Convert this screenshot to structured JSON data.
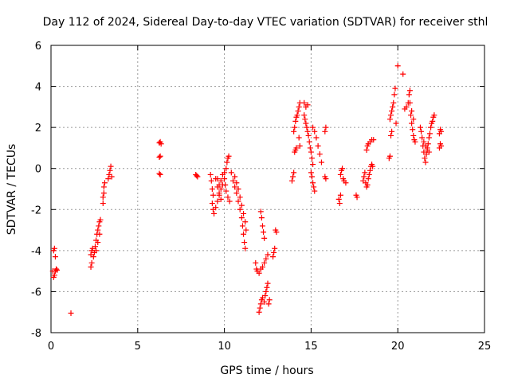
{
  "chart_data": {
    "type": "scatter",
    "title": "Day 112 of 2024, Sidereal Day-to-day VTEC variation (SDTVAR) for receiver sthl",
    "xlabel": "GPS time / hours",
    "ylabel": "SDTVAR / TECUs",
    "xlim": [
      0,
      25
    ],
    "ylim": [
      -8,
      6
    ],
    "xticks": [
      0,
      5,
      10,
      15,
      20,
      25
    ],
    "yticks": [
      -8,
      -6,
      -4,
      -2,
      0,
      2,
      4,
      6
    ],
    "xtick_labels": [
      "0",
      "5",
      "10",
      "15",
      "20",
      "25"
    ],
    "ytick_labels": [
      "-8",
      "-6",
      "-4",
      "-2",
      "0",
      "2",
      "4",
      "6"
    ],
    "grid": true,
    "marker": "+",
    "color": "#ff0000",
    "series": [
      {
        "name": "SDTVAR",
        "points": [
          [
            0.15,
            -4.0
          ],
          [
            0.2,
            -3.9
          ],
          [
            0.25,
            -4.3
          ],
          [
            0.1,
            -5.0
          ],
          [
            0.15,
            -5.3
          ],
          [
            0.2,
            -5.2
          ],
          [
            0.25,
            -5.0
          ],
          [
            0.3,
            -4.9
          ],
          [
            0.35,
            -4.95
          ],
          [
            1.15,
            -7.05
          ],
          [
            2.3,
            -4.8
          ],
          [
            2.35,
            -4.6
          ],
          [
            2.3,
            -4.2
          ],
          [
            2.35,
            -4.0
          ],
          [
            2.4,
            -3.9
          ],
          [
            2.45,
            -4.3
          ],
          [
            2.5,
            -4.1
          ],
          [
            2.55,
            -3.8
          ],
          [
            2.6,
            -3.5
          ],
          [
            2.65,
            -3.2
          ],
          [
            2.7,
            -3.0
          ],
          [
            2.75,
            -2.8
          ],
          [
            2.8,
            -2.6
          ],
          [
            2.85,
            -2.5
          ],
          [
            2.6,
            -4.0
          ],
          [
            2.7,
            -3.6
          ],
          [
            2.8,
            -3.2
          ],
          [
            3.0,
            -1.7
          ],
          [
            3.0,
            -1.4
          ],
          [
            3.05,
            -1.2
          ],
          [
            3.05,
            -0.9
          ],
          [
            3.1,
            -0.7
          ],
          [
            3.3,
            -0.5
          ],
          [
            3.35,
            -0.3
          ],
          [
            3.4,
            -0.1
          ],
          [
            3.45,
            0.1
          ],
          [
            3.5,
            -0.4
          ],
          [
            6.25,
            1.25
          ],
          [
            6.3,
            1.3
          ],
          [
            6.35,
            1.2
          ],
          [
            6.25,
            0.55
          ],
          [
            6.3,
            0.6
          ],
          [
            6.25,
            -0.25
          ],
          [
            6.3,
            -0.3
          ],
          [
            8.35,
            -0.3
          ],
          [
            8.4,
            -0.35
          ],
          [
            8.45,
            -0.4
          ],
          [
            9.2,
            -0.3
          ],
          [
            9.25,
            -0.6
          ],
          [
            9.3,
            -1.0
          ],
          [
            9.35,
            -1.3
          ],
          [
            9.3,
            -1.7
          ],
          [
            9.35,
            -2.0
          ],
          [
            9.4,
            -2.2
          ],
          [
            9.5,
            -1.9
          ],
          [
            9.6,
            -1.6
          ],
          [
            9.7,
            -1.3
          ],
          [
            9.8,
            -1.0
          ],
          [
            9.9,
            -0.8
          ],
          [
            9.6,
            -0.5
          ],
          [
            9.7,
            -0.8
          ],
          [
            9.8,
            -0.6
          ],
          [
            9.9,
            -0.3
          ],
          [
            10.0,
            -0.5
          ],
          [
            10.0,
            -0.2
          ],
          [
            10.1,
            0.0
          ],
          [
            10.15,
            0.3
          ],
          [
            10.2,
            0.5
          ],
          [
            10.25,
            0.6
          ],
          [
            9.5,
            -0.5
          ],
          [
            9.6,
            -0.9
          ],
          [
            9.7,
            -1.2
          ],
          [
            9.8,
            -1.5
          ],
          [
            10.05,
            -0.8
          ],
          [
            10.1,
            -1.1
          ],
          [
            10.2,
            -1.4
          ],
          [
            10.3,
            -1.6
          ],
          [
            10.4,
            -0.2
          ],
          [
            10.5,
            -0.6
          ],
          [
            10.6,
            -0.9
          ],
          [
            10.7,
            -1.2
          ],
          [
            10.8,
            -1.6
          ],
          [
            10.9,
            -2.0
          ],
          [
            11.0,
            -2.4
          ],
          [
            11.05,
            -2.8
          ],
          [
            11.1,
            -3.2
          ],
          [
            11.15,
            -3.6
          ],
          [
            11.2,
            -3.9
          ],
          [
            10.6,
            -0.4
          ],
          [
            10.7,
            -0.7
          ],
          [
            10.8,
            -1.0
          ],
          [
            10.9,
            -1.4
          ],
          [
            11.0,
            -1.8
          ],
          [
            11.1,
            -2.2
          ],
          [
            11.2,
            -2.6
          ],
          [
            11.25,
            -3.0
          ],
          [
            11.8,
            -4.6
          ],
          [
            11.85,
            -4.9
          ],
          [
            11.9,
            -5.0
          ],
          [
            12.0,
            -5.1
          ],
          [
            12.1,
            -4.9
          ],
          [
            12.2,
            -4.8
          ],
          [
            12.3,
            -4.6
          ],
          [
            12.4,
            -4.4
          ],
          [
            12.5,
            -4.2
          ],
          [
            12.1,
            -2.1
          ],
          [
            12.15,
            -2.4
          ],
          [
            12.2,
            -2.8
          ],
          [
            12.25,
            -3.1
          ],
          [
            12.3,
            -3.4
          ],
          [
            12.0,
            -7.0
          ],
          [
            12.05,
            -6.8
          ],
          [
            12.1,
            -6.6
          ],
          [
            12.15,
            -6.4
          ],
          [
            12.2,
            -6.3
          ],
          [
            12.3,
            -6.5
          ],
          [
            12.35,
            -6.2
          ],
          [
            12.4,
            -6.0
          ],
          [
            12.45,
            -5.8
          ],
          [
            12.5,
            -5.6
          ],
          [
            12.55,
            -6.6
          ],
          [
            12.6,
            -6.4
          ],
          [
            12.8,
            -4.3
          ],
          [
            12.85,
            -4.1
          ],
          [
            12.9,
            -3.9
          ],
          [
            12.95,
            -3.0
          ],
          [
            13.0,
            -3.1
          ],
          [
            13.9,
            -0.6
          ],
          [
            13.95,
            -0.4
          ],
          [
            14.0,
            -0.2
          ],
          [
            14.05,
            0.8
          ],
          [
            14.1,
            0.9
          ],
          [
            14.15,
            1.0
          ],
          [
            14.0,
            1.8
          ],
          [
            14.05,
            2.0
          ],
          [
            14.1,
            2.3
          ],
          [
            14.15,
            2.5
          ],
          [
            14.2,
            2.6
          ],
          [
            14.25,
            2.8
          ],
          [
            14.3,
            3.0
          ],
          [
            14.35,
            3.2
          ],
          [
            14.3,
            1.5
          ],
          [
            14.35,
            1.1
          ],
          [
            14.6,
            2.6
          ],
          [
            14.65,
            2.4
          ],
          [
            14.7,
            2.2
          ],
          [
            14.75,
            2.0
          ],
          [
            14.8,
            1.8
          ],
          [
            14.85,
            1.6
          ],
          [
            14.9,
            1.3
          ],
          [
            14.95,
            1.0
          ],
          [
            15.0,
            0.8
          ],
          [
            15.05,
            0.5
          ],
          [
            15.1,
            0.2
          ],
          [
            14.6,
            3.2
          ],
          [
            14.7,
            3.0
          ],
          [
            14.8,
            3.1
          ],
          [
            15.0,
            -0.2
          ],
          [
            15.05,
            -0.4
          ],
          [
            15.1,
            -0.7
          ],
          [
            15.15,
            -0.9
          ],
          [
            15.2,
            -1.1
          ],
          [
            15.1,
            2.0
          ],
          [
            15.2,
            1.8
          ],
          [
            15.3,
            1.5
          ],
          [
            15.4,
            1.1
          ],
          [
            15.5,
            0.7
          ],
          [
            15.6,
            0.3
          ],
          [
            15.8,
            1.8
          ],
          [
            15.85,
            2.0
          ],
          [
            15.8,
            -0.4
          ],
          [
            15.85,
            -0.5
          ],
          [
            16.6,
            -1.5
          ],
          [
            16.65,
            -1.7
          ],
          [
            16.7,
            -1.3
          ],
          [
            16.7,
            -0.3
          ],
          [
            16.75,
            -0.1
          ],
          [
            16.8,
            0.0
          ],
          [
            16.85,
            -0.5
          ],
          [
            16.9,
            -0.6
          ],
          [
            17.0,
            -0.7
          ],
          [
            17.6,
            -1.3
          ],
          [
            17.65,
            -1.4
          ],
          [
            18.0,
            -0.6
          ],
          [
            18.05,
            -0.4
          ],
          [
            18.1,
            -0.2
          ],
          [
            18.15,
            -0.7
          ],
          [
            18.2,
            -0.9
          ],
          [
            18.25,
            -0.8
          ],
          [
            18.3,
            -0.5
          ],
          [
            18.35,
            -0.3
          ],
          [
            18.4,
            -0.1
          ],
          [
            18.45,
            0.1
          ],
          [
            18.5,
            0.2
          ],
          [
            18.55,
            0.1
          ],
          [
            18.2,
            0.9
          ],
          [
            18.25,
            1.1
          ],
          [
            18.3,
            1.2
          ],
          [
            18.4,
            1.3
          ],
          [
            18.5,
            1.4
          ],
          [
            18.6,
            1.4
          ],
          [
            19.5,
            0.5
          ],
          [
            19.55,
            0.6
          ],
          [
            19.6,
            1.6
          ],
          [
            19.65,
            1.8
          ],
          [
            19.55,
            2.4
          ],
          [
            19.6,
            2.6
          ],
          [
            19.65,
            2.8
          ],
          [
            19.7,
            3.0
          ],
          [
            19.75,
            3.2
          ],
          [
            19.8,
            3.6
          ],
          [
            19.85,
            3.9
          ],
          [
            19.9,
            2.2
          ],
          [
            20.0,
            5.0
          ],
          [
            20.3,
            4.6
          ],
          [
            20.4,
            2.9
          ],
          [
            20.5,
            3.0
          ],
          [
            20.6,
            3.2
          ],
          [
            20.65,
            3.6
          ],
          [
            20.7,
            3.8
          ],
          [
            20.75,
            2.6
          ],
          [
            20.8,
            2.2
          ],
          [
            20.85,
            1.9
          ],
          [
            20.9,
            1.6
          ],
          [
            20.95,
            1.4
          ],
          [
            21.0,
            1.3
          ],
          [
            20.7,
            3.2
          ],
          [
            20.8,
            2.8
          ],
          [
            20.9,
            2.4
          ],
          [
            21.3,
            2.0
          ],
          [
            21.35,
            1.8
          ],
          [
            21.4,
            1.5
          ],
          [
            21.45,
            1.1
          ],
          [
            21.5,
            0.8
          ],
          [
            21.55,
            0.5
          ],
          [
            21.6,
            0.3
          ],
          [
            21.65,
            0.7
          ],
          [
            21.7,
            1.0
          ],
          [
            21.75,
            1.2
          ],
          [
            21.8,
            1.5
          ],
          [
            21.85,
            1.7
          ],
          [
            21.9,
            2.0
          ],
          [
            21.95,
            2.2
          ],
          [
            22.0,
            2.3
          ],
          [
            22.05,
            2.5
          ],
          [
            22.1,
            2.6
          ],
          [
            21.5,
            1.3
          ],
          [
            21.6,
            1.1
          ],
          [
            21.7,
            0.9
          ],
          [
            21.8,
            0.8
          ],
          [
            22.4,
            1.0
          ],
          [
            22.45,
            1.2
          ],
          [
            22.5,
            1.1
          ],
          [
            22.4,
            1.7
          ],
          [
            22.45,
            1.9
          ],
          [
            22.5,
            1.8
          ]
        ]
      }
    ]
  }
}
